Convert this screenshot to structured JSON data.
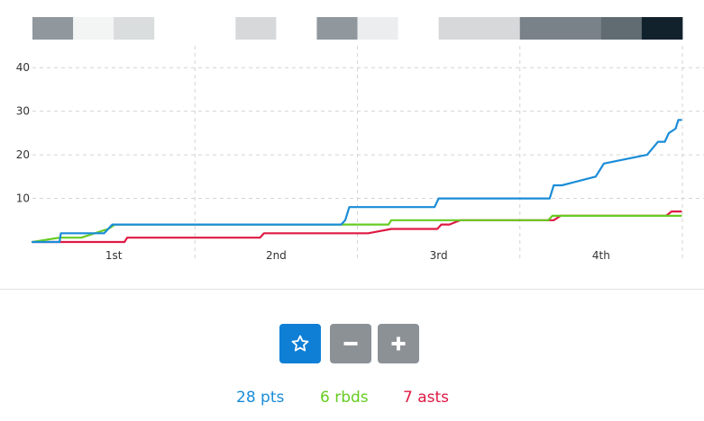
{
  "chart_data": {
    "type": "line",
    "xlabel": "",
    "ylabel": "",
    "x_categories": [
      "1st",
      "2nd",
      "3rd",
      "4th"
    ],
    "xlim": [
      0,
      48
    ],
    "ylim": [
      0,
      45
    ],
    "yticks": [
      10,
      20,
      30,
      40
    ],
    "grid": true,
    "grid_style": "dashed",
    "series": [
      {
        "name": "pts",
        "color": "#1a8cd8",
        "points": [
          [
            0,
            0
          ],
          [
            2.0,
            0
          ],
          [
            2.1,
            2
          ],
          [
            5.3,
            2
          ],
          [
            5.9,
            4
          ],
          [
            22.8,
            4
          ],
          [
            23.1,
            5
          ],
          [
            23.4,
            8
          ],
          [
            29.7,
            8
          ],
          [
            30.0,
            10
          ],
          [
            38.2,
            10
          ],
          [
            38.5,
            13
          ],
          [
            39.1,
            13
          ],
          [
            41.6,
            15
          ],
          [
            42.2,
            18
          ],
          [
            45.4,
            20
          ],
          [
            46.2,
            23
          ],
          [
            46.7,
            23
          ],
          [
            47.0,
            25
          ],
          [
            47.5,
            26
          ],
          [
            47.7,
            28
          ],
          [
            47.9,
            28
          ]
        ]
      },
      {
        "name": "rbds",
        "color": "#66cc22",
        "points": [
          [
            0,
            0
          ],
          [
            2.0,
            1
          ],
          [
            3.6,
            1
          ],
          [
            5.6,
            3
          ],
          [
            6.1,
            4
          ],
          [
            26.3,
            4
          ],
          [
            26.5,
            5
          ],
          [
            30.5,
            5
          ],
          [
            31.6,
            5
          ],
          [
            38.1,
            5
          ],
          [
            38.4,
            6
          ],
          [
            47.9,
            6
          ]
        ]
      },
      {
        "name": "asts",
        "color": "#dd1a44",
        "points": [
          [
            0,
            0
          ],
          [
            6.8,
            0
          ],
          [
            7.0,
            1
          ],
          [
            16.8,
            1
          ],
          [
            17.1,
            2
          ],
          [
            24.8,
            2
          ],
          [
            26.5,
            3
          ],
          [
            29.9,
            3
          ],
          [
            30.2,
            4
          ],
          [
            30.8,
            4
          ],
          [
            31.6,
            5
          ],
          [
            38.5,
            5
          ],
          [
            39.0,
            6
          ],
          [
            46.8,
            6
          ],
          [
            47.2,
            7
          ],
          [
            47.9,
            7
          ]
        ]
      }
    ],
    "heat_strip": [
      0.45,
      0.05,
      0.15,
      0,
      0,
      0.17,
      0,
      0.45,
      0.08,
      0,
      0.17,
      0.17,
      0.55,
      0.55,
      0.65,
      0.97
    ]
  },
  "controls": {
    "favorite_icon": "star-outline-icon",
    "zoom_out_icon": "minus-icon",
    "zoom_in_icon": "plus-icon",
    "primary_color": "#0f7fd6",
    "secondary_color": "#8c9196"
  },
  "stats": {
    "points": "28 pts",
    "rebounds": "6 rbds",
    "assists": "7 asts"
  }
}
